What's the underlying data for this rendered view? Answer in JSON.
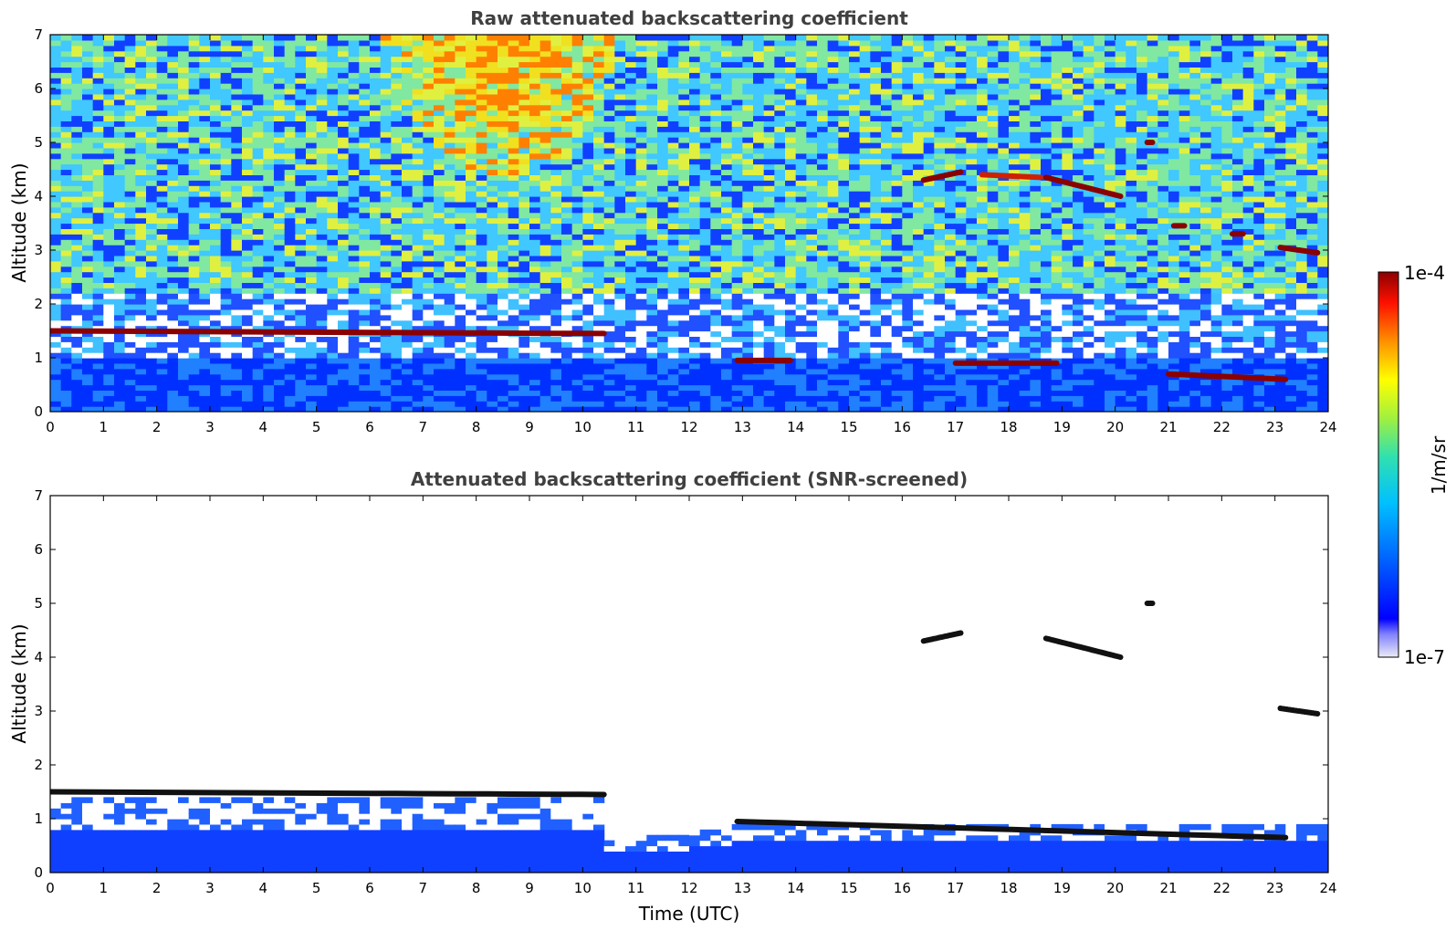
{
  "chart_data": [
    {
      "type": "heatmap",
      "title": "Raw attenuated backscattering coefficient",
      "xlabel": "",
      "ylabel": "Altitude (km)",
      "xlim": [
        0,
        24
      ],
      "ylim": [
        0,
        7
      ],
      "xticks": [
        0,
        1,
        2,
        3,
        4,
        5,
        6,
        7,
        8,
        9,
        10,
        11,
        12,
        13,
        14,
        15,
        16,
        17,
        18,
        19,
        20,
        21,
        22,
        23,
        24
      ],
      "yticks": [
        0,
        1,
        2,
        3,
        4,
        5,
        6,
        7
      ],
      "screened": false,
      "features": [
        {
          "kind": "layer",
          "t0": 0.0,
          "t1": 10.4,
          "z0": 1.5,
          "z1": 1.45,
          "level": "high"
        },
        {
          "kind": "layer",
          "t0": 12.9,
          "t1": 13.9,
          "z0": 0.95,
          "z1": 0.95,
          "level": "high"
        },
        {
          "kind": "layer",
          "t0": 16.4,
          "t1": 17.1,
          "z0": 4.3,
          "z1": 4.45,
          "level": "high"
        },
        {
          "kind": "layer",
          "t0": 17.5,
          "t1": 18.6,
          "z0": 4.4,
          "z1": 4.35,
          "level": "mid"
        },
        {
          "kind": "layer",
          "t0": 18.7,
          "t1": 20.1,
          "z0": 4.35,
          "z1": 4.0,
          "level": "high"
        },
        {
          "kind": "layer",
          "t0": 17.0,
          "t1": 18.9,
          "z0": 0.9,
          "z1": 0.9,
          "level": "high"
        },
        {
          "kind": "layer",
          "t0": 21.0,
          "t1": 23.2,
          "z0": 0.7,
          "z1": 0.6,
          "level": "high"
        },
        {
          "kind": "layer",
          "t0": 23.1,
          "t1": 23.8,
          "z0": 3.05,
          "z1": 2.95,
          "level": "high"
        },
        {
          "kind": "layer",
          "t0": 20.6,
          "t1": 20.7,
          "z0": 5.0,
          "z1": 5.0,
          "level": "high"
        },
        {
          "kind": "layer",
          "t0": 22.2,
          "t1": 22.4,
          "z0": 3.3,
          "z1": 3.3,
          "level": "high"
        },
        {
          "kind": "layer",
          "t0": 21.1,
          "t1": 21.3,
          "z0": 3.45,
          "z1": 3.45,
          "level": "high"
        }
      ]
    },
    {
      "type": "heatmap",
      "title": "Attenuated backscattering coefficient (SNR-screened)",
      "xlabel": "Time (UTC)",
      "ylabel": "Altitude (km)",
      "xlim": [
        0,
        24
      ],
      "ylim": [
        0,
        7
      ],
      "xticks": [
        0,
        1,
        2,
        3,
        4,
        5,
        6,
        7,
        8,
        9,
        10,
        11,
        12,
        13,
        14,
        15,
        16,
        17,
        18,
        19,
        20,
        21,
        22,
        23,
        24
      ],
      "yticks": [
        0,
        1,
        2,
        3,
        4,
        5,
        6,
        7
      ],
      "screened": true,
      "features": [
        {
          "kind": "layer",
          "t0": 0.0,
          "t1": 10.4,
          "z0": 1.5,
          "z1": 1.45,
          "level": "peak"
        },
        {
          "kind": "layer",
          "t0": 12.9,
          "t1": 23.2,
          "z0": 0.95,
          "z1": 0.65,
          "level": "peak"
        },
        {
          "kind": "layer",
          "t0": 16.4,
          "t1": 17.1,
          "z0": 4.3,
          "z1": 4.45,
          "level": "peak"
        },
        {
          "kind": "layer",
          "t0": 18.7,
          "t1": 20.1,
          "z0": 4.35,
          "z1": 4.0,
          "level": "peak"
        },
        {
          "kind": "layer",
          "t0": 23.1,
          "t1": 23.8,
          "z0": 3.05,
          "z1": 2.95,
          "level": "peak"
        },
        {
          "kind": "layer",
          "t0": 20.6,
          "t1": 20.7,
          "z0": 5.0,
          "z1": 5.0,
          "level": "peak"
        }
      ]
    }
  ],
  "colorbar": {
    "label": "1/m/sr",
    "min_label": "1e-7",
    "max_label": "1e-4",
    "scale": "log",
    "colormap": [
      "#ebebf5",
      "#0000ff",
      "#00bfff",
      "#40e0a0",
      "#ffff00",
      "#ff8000",
      "#ff0000",
      "#8b0000"
    ]
  }
}
